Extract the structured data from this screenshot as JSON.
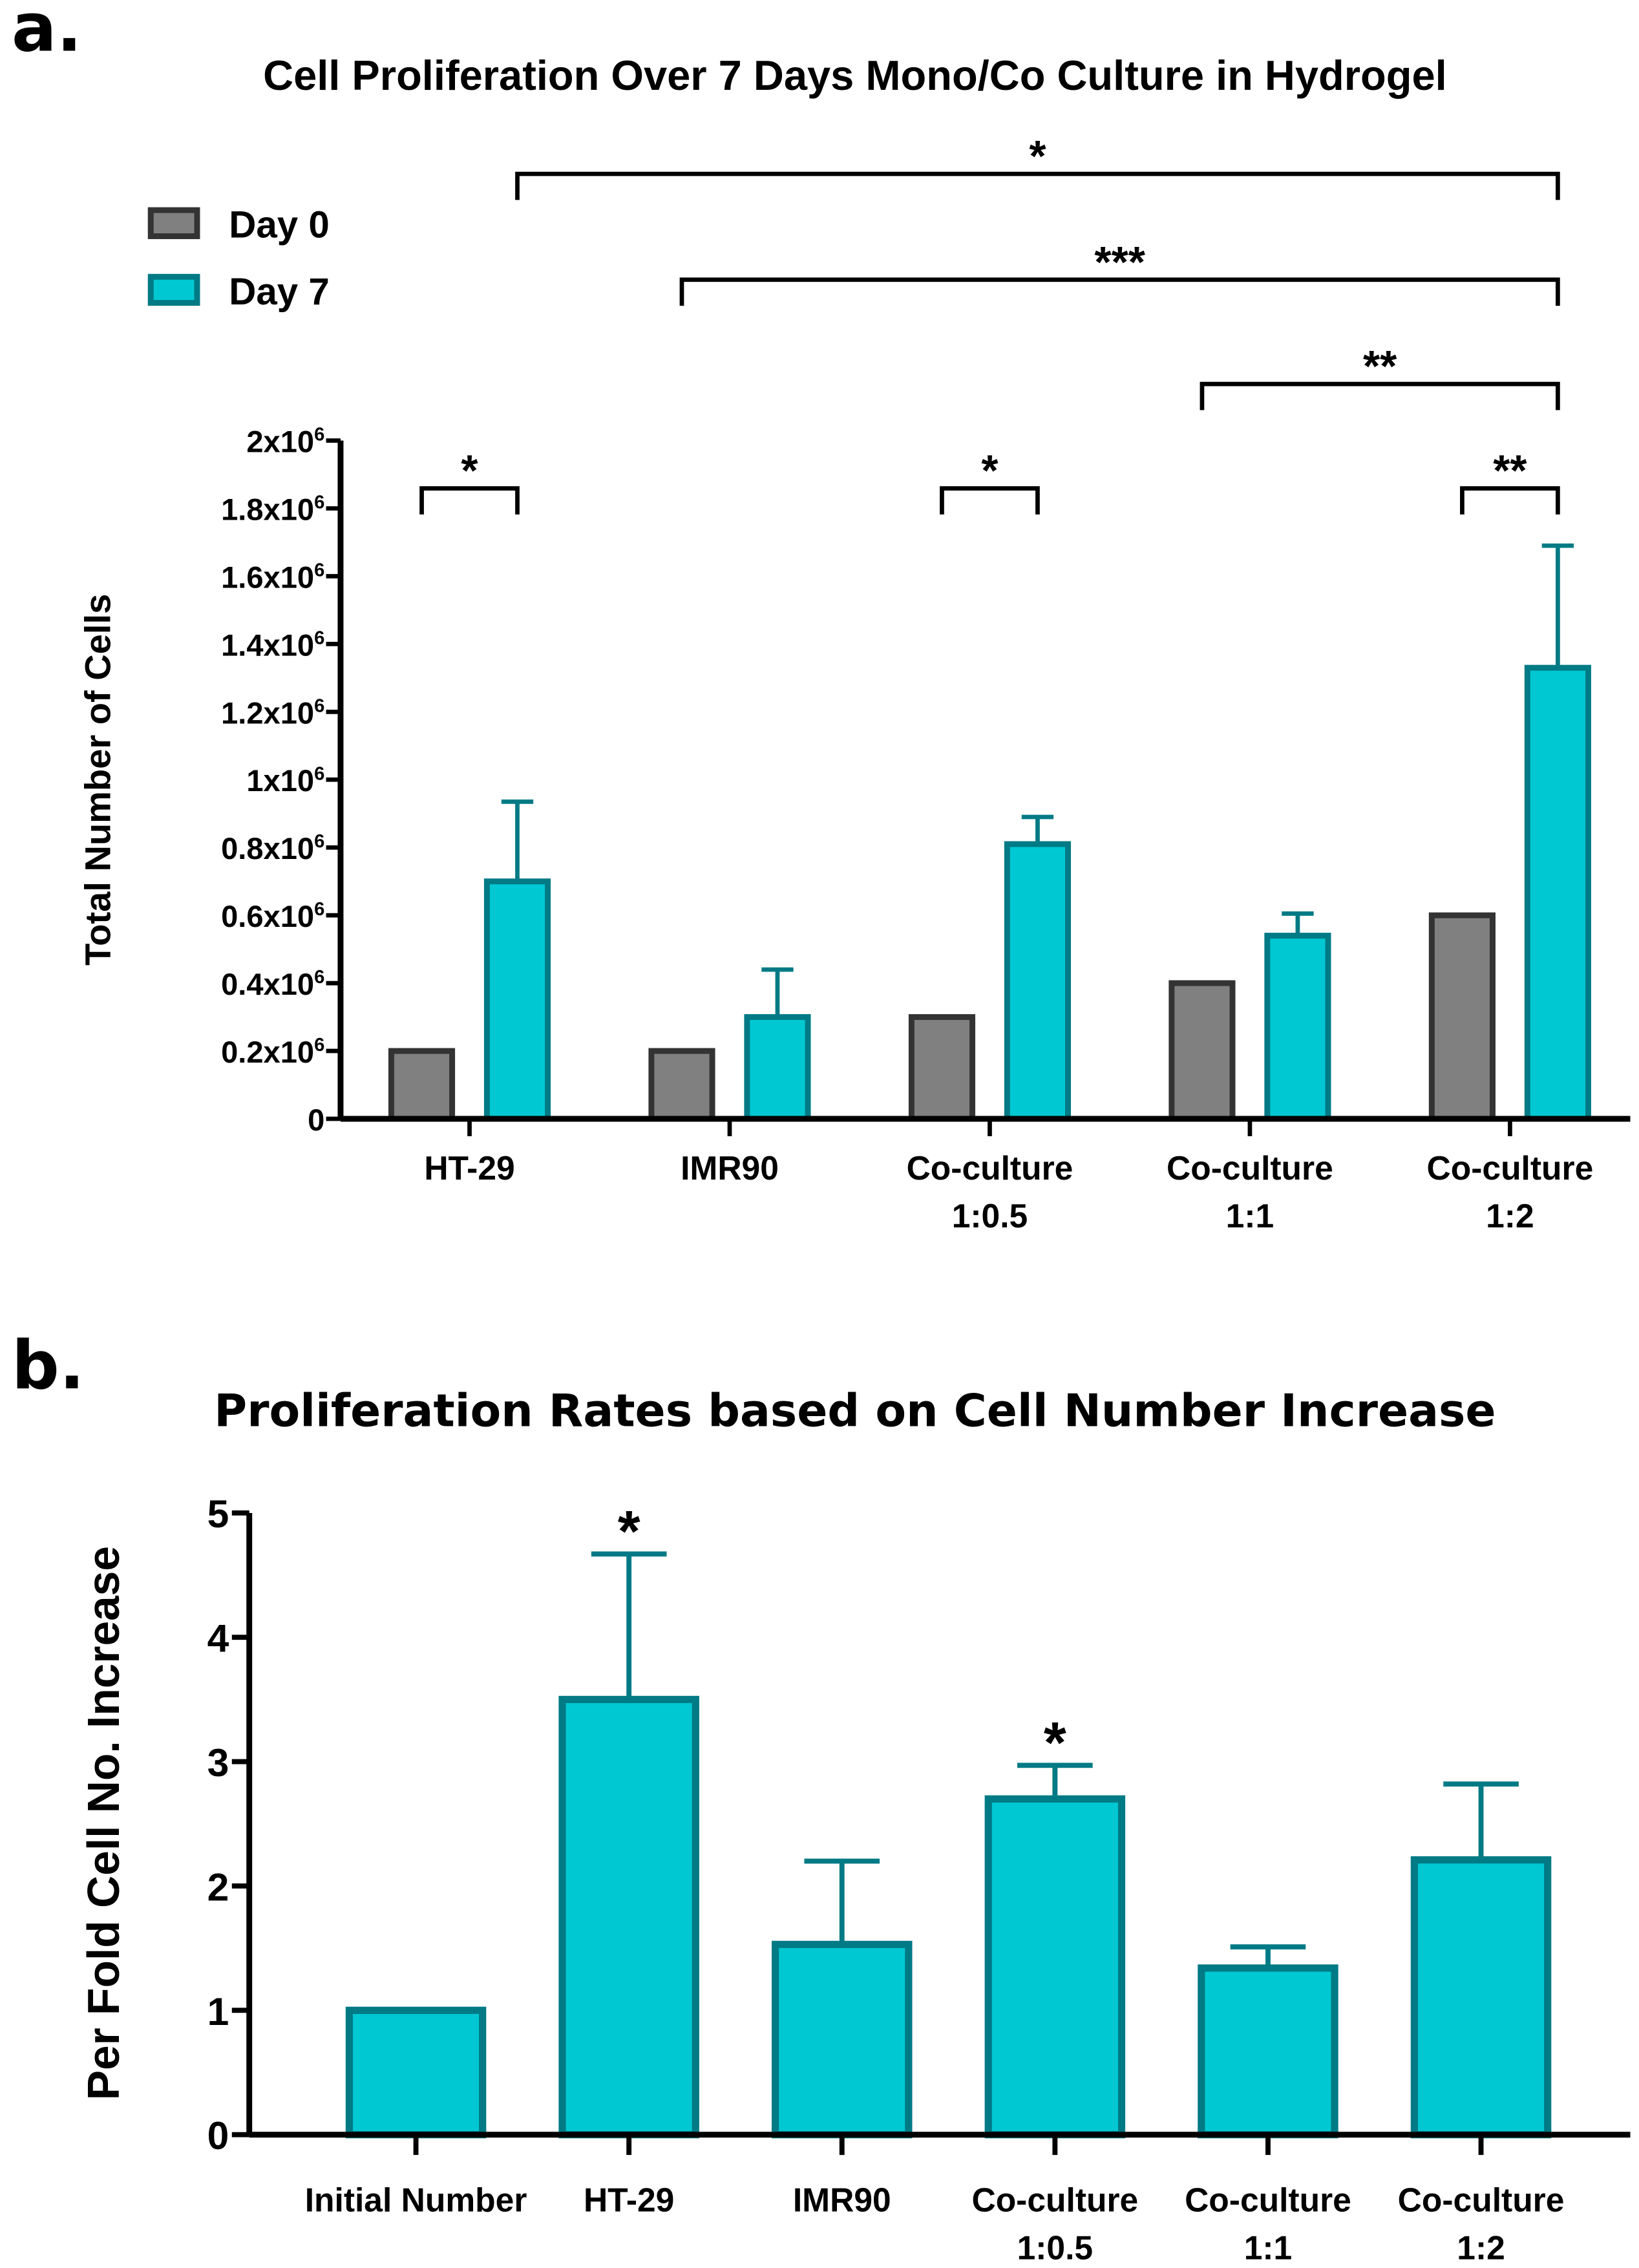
{
  "chart_data": [
    {
      "panel_label": "a.",
      "type": "bar",
      "title": "Cell Proliferation Over 7 Days Mono/Co Culture in Hydrogel",
      "ylabel": "Total Number of Cells",
      "xlabel": "",
      "ylim": [
        0,
        2000000
      ],
      "yticks": [
        0,
        200000,
        400000,
        600000,
        800000,
        1000000,
        1200000,
        1400000,
        1600000,
        1800000,
        2000000
      ],
      "ytick_labels": [
        {
          "base": "0",
          "exp": ""
        },
        {
          "base": "0.2x10",
          "exp": "6"
        },
        {
          "base": "0.4x10",
          "exp": "6"
        },
        {
          "base": "0.6x10",
          "exp": "6"
        },
        {
          "base": "0.8x10",
          "exp": "6"
        },
        {
          "base": "1x10",
          "exp": "6"
        },
        {
          "base": "1.2x10",
          "exp": "6"
        },
        {
          "base": "1.4x10",
          "exp": "6"
        },
        {
          "base": "1.6x10",
          "exp": "6"
        },
        {
          "base": "1.8x10",
          "exp": "6"
        },
        {
          "base": "2x10",
          "exp": "6"
        }
      ],
      "categories": [
        [
          "HT-29"
        ],
        [
          "IMR90"
        ],
        [
          "Co-culture",
          "1:0.5"
        ],
        [
          "Co-culture",
          "1:1"
        ],
        [
          "Co-culture",
          "1:2"
        ]
      ],
      "legend": {
        "placement": "top-left"
      },
      "grid": false,
      "series": [
        {
          "name": "Day 0",
          "color": "#808080",
          "edge": "#333333",
          "values": [
            200000,
            200000,
            300000,
            400000,
            600000
          ],
          "error_upper": [
            null,
            null,
            null,
            null,
            null
          ]
        },
        {
          "name": "Day 7",
          "color": "#00c8d2",
          "edge": "#007a85",
          "values": [
            700000,
            300000,
            810000,
            540000,
            1330000
          ],
          "error_upper": [
            935000,
            440000,
            890000,
            605000,
            1690000
          ]
        }
      ],
      "significance": [
        {
          "from": [
            0,
            1
          ],
          "to": [
            4,
            1
          ],
          "label": "*"
        },
        {
          "from": [
            1,
            0
          ],
          "to": [
            4,
            1
          ],
          "label": "***"
        },
        {
          "from": [
            3,
            0
          ],
          "to": [
            4,
            1
          ],
          "label": "**"
        },
        {
          "from": [
            0,
            0
          ],
          "to": [
            0,
            1
          ],
          "label": "*"
        },
        {
          "from": [
            2,
            0
          ],
          "to": [
            2,
            1
          ],
          "label": "*"
        },
        {
          "from": [
            4,
            0
          ],
          "to": [
            4,
            1
          ],
          "label": "**"
        }
      ]
    },
    {
      "panel_label": "b.",
      "type": "bar",
      "title": "Proliferation Rates based on Cell Number Increase",
      "ylabel": "Per Fold Cell No. Increase",
      "xlabel": "",
      "ylim": [
        0,
        5
      ],
      "yticks": [
        0,
        1,
        2,
        3,
        4,
        5
      ],
      "ytick_labels": [
        "0",
        "1",
        "2",
        "3",
        "4",
        "5"
      ],
      "grid": false,
      "categories": [
        [
          "Initial Number"
        ],
        [
          "HT-29"
        ],
        [
          "IMR90"
        ],
        [
          "Co-culture",
          "1:0.5"
        ],
        [
          "Co-culture",
          "1:1"
        ],
        [
          "Co-culture",
          "1:2"
        ]
      ],
      "color": "#00c8d2",
      "edge": "#007a85",
      "values": [
        1.0,
        3.5,
        1.53,
        2.7,
        1.34,
        2.21
      ],
      "error_upper": [
        null,
        4.67,
        2.2,
        2.97,
        1.51,
        2.82
      ],
      "annotations": [
        "",
        "*",
        "",
        "*",
        "",
        ""
      ]
    }
  ]
}
